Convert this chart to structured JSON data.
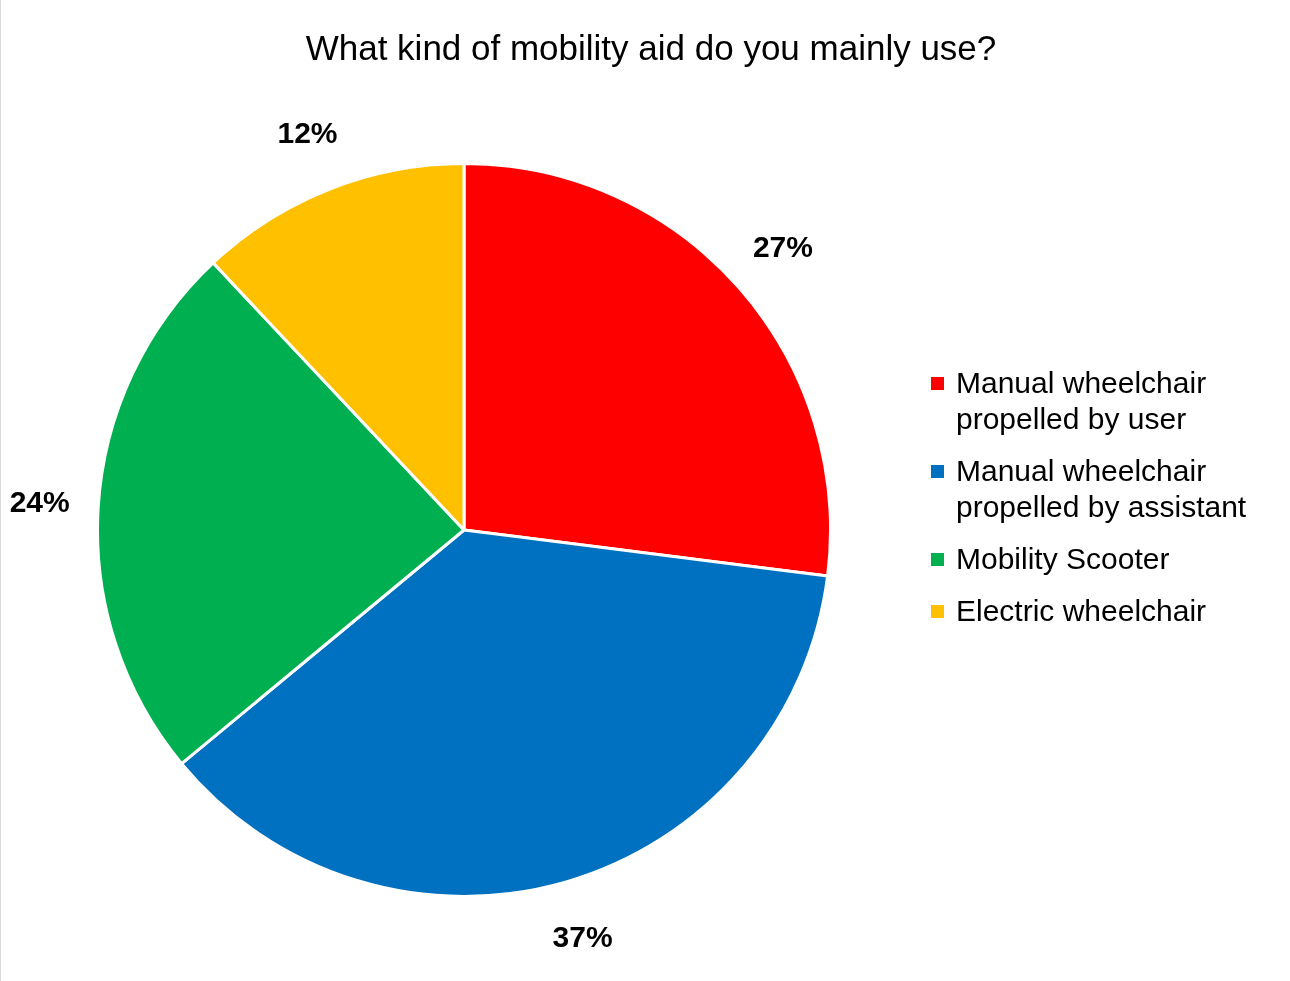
{
  "chart_data": {
    "type": "pie",
    "title": "What kind of mobility aid do you mainly use?",
    "categories": [
      "Manual wheelchair propelled by user",
      "Manual wheelchair propelled by assistant",
      "Mobility Scooter",
      "Electric wheelchair"
    ],
    "values": [
      27,
      37,
      24,
      12
    ],
    "colors": [
      "#ff0000",
      "#0070c0",
      "#00b050",
      "#ffc000"
    ],
    "value_labels": [
      "27%",
      "37%",
      "24%",
      "12%"
    ],
    "legend": "right"
  }
}
